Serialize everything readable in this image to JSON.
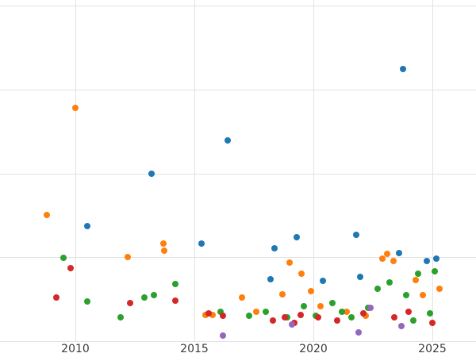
{
  "chart_data": {
    "type": "scatter",
    "title": "",
    "xlabel": "",
    "ylabel": "",
    "grid": true,
    "legend": "none",
    "xlim": [
      2006.83,
      2026.83
    ],
    "ylim": [
      -0.19,
      4.07
    ],
    "x_ticks": [
      2010,
      2015,
      2020,
      2025
    ],
    "x_tick_labels": [
      "2010",
      "2015",
      "2020",
      "2025"
    ],
    "y_grid_values": [
      0,
      1,
      2,
      3,
      4
    ],
    "y_tick_labels": [],
    "series": [
      {
        "name": "blue",
        "color": "#1f77b4",
        "points": [
          [
            2010.5,
            1.37
          ],
          [
            2013.2,
            2.0
          ],
          [
            2016.4,
            2.39
          ],
          [
            2023.75,
            3.25
          ],
          [
            2015.3,
            1.16
          ],
          [
            2019.3,
            1.24
          ],
          [
            2021.8,
            1.27
          ],
          [
            2018.35,
            1.11
          ],
          [
            2018.2,
            0.74
          ],
          [
            2020.4,
            0.72
          ],
          [
            2021.95,
            0.77
          ],
          [
            2023.6,
            1.05
          ],
          [
            2024.75,
            0.96
          ],
          [
            2025.15,
            0.98
          ]
        ]
      },
      {
        "name": "orange",
        "color": "#ff7f0e",
        "points": [
          [
            2008.8,
            1.5
          ],
          [
            2010.0,
            2.78
          ],
          [
            2012.2,
            1.0
          ],
          [
            2013.7,
            1.16
          ],
          [
            2013.72,
            1.08
          ],
          [
            2015.45,
            0.31
          ],
          [
            2015.75,
            0.31
          ],
          [
            2017.0,
            0.52
          ],
          [
            2017.6,
            0.35
          ],
          [
            2018.7,
            0.56
          ],
          [
            2019.0,
            0.94
          ],
          [
            2019.5,
            0.8
          ],
          [
            2019.9,
            0.6
          ],
          [
            2020.3,
            0.42
          ],
          [
            2021.4,
            0.35
          ],
          [
            2022.2,
            0.3
          ],
          [
            2022.9,
            0.98
          ],
          [
            2023.1,
            1.04
          ],
          [
            2023.35,
            0.96
          ],
          [
            2024.3,
            0.73
          ],
          [
            2024.6,
            0.55
          ],
          [
            2025.3,
            0.62
          ]
        ]
      },
      {
        "name": "green",
        "color": "#2ca02c",
        "points": [
          [
            2009.5,
            0.99
          ],
          [
            2010.5,
            0.47
          ],
          [
            2011.9,
            0.28
          ],
          [
            2012.9,
            0.52
          ],
          [
            2013.3,
            0.55
          ],
          [
            2014.2,
            0.68
          ],
          [
            2016.1,
            0.35
          ],
          [
            2017.3,
            0.3
          ],
          [
            2018.0,
            0.35
          ],
          [
            2018.9,
            0.28
          ],
          [
            2019.6,
            0.42
          ],
          [
            2020.1,
            0.3
          ],
          [
            2020.8,
            0.45
          ],
          [
            2021.2,
            0.35
          ],
          [
            2021.6,
            0.28
          ],
          [
            2022.3,
            0.4
          ],
          [
            2022.7,
            0.62
          ],
          [
            2023.2,
            0.7
          ],
          [
            2023.9,
            0.55
          ],
          [
            2024.2,
            0.25
          ],
          [
            2024.4,
            0.8
          ],
          [
            2024.9,
            0.33
          ],
          [
            2025.1,
            0.83
          ]
        ]
      },
      {
        "name": "red",
        "color": "#d62728",
        "points": [
          [
            2009.2,
            0.52
          ],
          [
            2009.8,
            0.87
          ],
          [
            2012.3,
            0.45
          ],
          [
            2014.2,
            0.48
          ],
          [
            2015.6,
            0.33
          ],
          [
            2016.2,
            0.3
          ],
          [
            2018.3,
            0.25
          ],
          [
            2018.8,
            0.28
          ],
          [
            2019.2,
            0.22
          ],
          [
            2019.45,
            0.31
          ],
          [
            2020.2,
            0.28
          ],
          [
            2021.0,
            0.25
          ],
          [
            2022.1,
            0.33
          ],
          [
            2023.4,
            0.28
          ],
          [
            2024.0,
            0.35
          ],
          [
            2025.0,
            0.22
          ]
        ]
      },
      {
        "name": "purple",
        "color": "#9467bd",
        "points": [
          [
            2016.2,
            0.07
          ],
          [
            2019.1,
            0.2
          ],
          [
            2021.9,
            0.1
          ],
          [
            2022.4,
            0.4
          ],
          [
            2023.7,
            0.18
          ]
        ]
      }
    ]
  }
}
